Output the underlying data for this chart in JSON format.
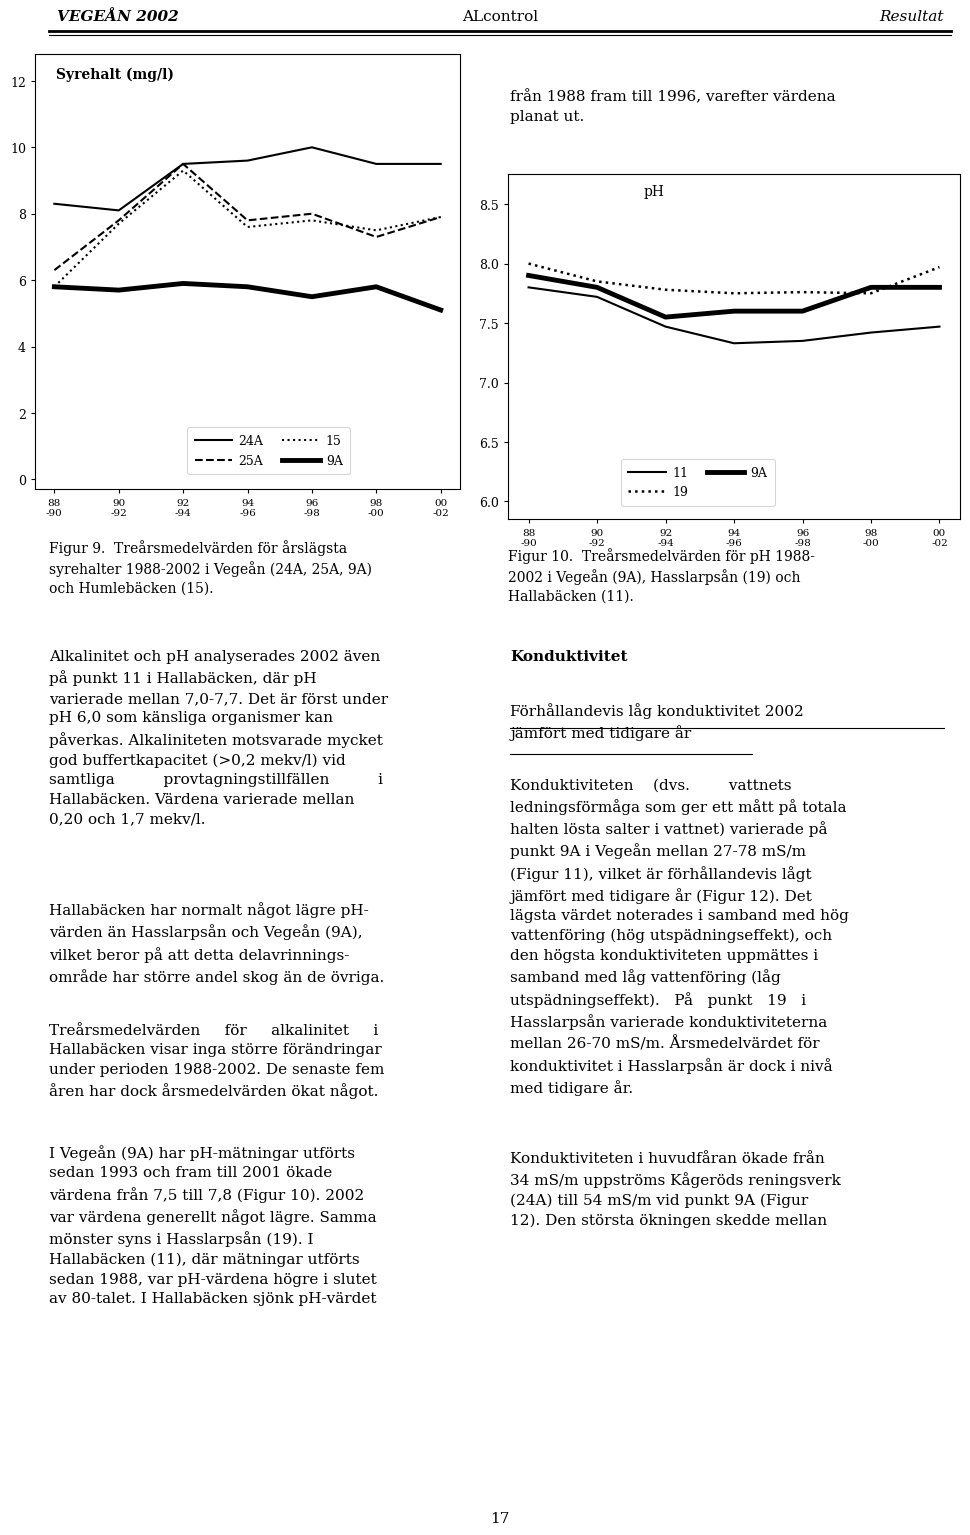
{
  "page_width": 9.6,
  "page_height": 15.74,
  "header_left": "VEGEÅN 2002",
  "header_center": "ALcontrol",
  "header_right": "Resultat",
  "chart1_title": "Syrehalt (mg/l)",
  "chart1_ylabel_vals": [
    0,
    2,
    4,
    6,
    8,
    10,
    12
  ],
  "chart1_ylim": [
    -0.3,
    12.8
  ],
  "chart1_xlabels": [
    "88\n-90",
    "90\n-92",
    "92\n-94",
    "94\n-96",
    "96\n-98",
    "98\n-00",
    "00\n-02"
  ],
  "chart1_series": {
    "24A": {
      "linestyle": "-",
      "linewidth": 1.5,
      "values": [
        8.3,
        8.1,
        9.5,
        9.6,
        10.0,
        9.5,
        9.5
      ]
    },
    "25A": {
      "linestyle": "--",
      "linewidth": 1.5,
      "values": [
        6.3,
        7.8,
        9.5,
        7.8,
        8.0,
        7.3,
        7.9
      ]
    },
    "15": {
      "linestyle": ":",
      "linewidth": 1.5,
      "values": [
        5.8,
        7.7,
        9.3,
        7.6,
        7.8,
        7.5,
        7.9
      ]
    },
    "9A": {
      "linestyle": "-",
      "linewidth": 3.5,
      "values": [
        5.8,
        5.7,
        5.9,
        5.8,
        5.5,
        5.8,
        5.1
      ]
    }
  },
  "right_text_top": "från 1988 fram till 1996, varefter värdena\nplanat ut.",
  "chart2_title": "pH",
  "chart2_ylabel_vals": [
    6.0,
    6.5,
    7.0,
    7.5,
    8.0,
    8.5
  ],
  "chart2_ylim": [
    5.85,
    8.75
  ],
  "chart2_xlabels": [
    "88\n-90",
    "90\n-92",
    "92\n-94",
    "94\n-96",
    "96\n-98",
    "98\n-00",
    "00\n-02"
  ],
  "chart2_series": {
    "9A": {
      "linestyle": "-",
      "linewidth": 3.5,
      "values": [
        7.9,
        7.8,
        7.55,
        7.6,
        7.6,
        7.8,
        7.8
      ]
    },
    "19": {
      "linestyle": ":",
      "linewidth": 1.8,
      "values": [
        8.0,
        7.85,
        7.78,
        7.75,
        7.76,
        7.75,
        7.97
      ]
    },
    "11": {
      "linestyle": "-",
      "linewidth": 1.5,
      "values": [
        7.8,
        7.72,
        7.47,
        7.33,
        7.35,
        7.42,
        7.47
      ]
    }
  },
  "fig9_caption": "Figur 9.  Treårsmedelvärden för årslägsta\nsyrehalter 1988-2002 i Vegeån (24A, 25A, 9A)\noch Humlebäcken (15).",
  "fig10_caption": "Figur 10.  Treårsmedelvärden för pH 1988-\n2002 i Vegeån (9A), Hasslarpsån (19) och\nHallabäcken (11).",
  "body_left_p1": "Alkalinitet och pH analyserades 2002 även\npå punkt 11 i Hallabäcken, där pH\nvarierade mellan 7,0-7,7. Det är först under\npH 6,0 som känsliga organismer kan\npåverkas. Alkaliniteten motsvarade ",
  "body_left_p1_italic": "mycket\ngod buffertkapacitet",
  "body_left_p1b": " (>0,2 mekv/l) vid\nsamtliga          provtagningstillfällen          i\nHallabäcken. Värdena varierade mellan\n0,20 och 1,7 mekv/l.",
  "body_left_p2": "Hallabäcken har normalt något lägre pH-\nvärden än Hasslarpsån och Vegeån (9A),\nvilket beror på att detta delavrinnings-\nområde har större andel skog än de övriga.",
  "body_left_p3": "Treårsmedelvärden     för     alkalinitet     i\nHallabäcken visar inga större förändringar\nunder perioden 1988-2002. De senaste fem\nåren har dock årsmedelvärden ökat något.",
  "body_left_p4": "I Vegeån (9A) har pH-mätningar utförts\nsedan 1993 och fram till 2001 ökade\nvärdena från 7,5 till 7,8 (Figur 10). 2002\nvar värdena generellt något lägre. Samma\nmönster syns i Hasslarpsån (19). I\nHallabäcken (11), där mätningar utförts\nsedan 1988, var pH-värdena högre i slutet\nav 80-talet. I Hallabäcken sjönk pH-värdet",
  "body_right_heading": "Konduktivitet",
  "body_right_subheading": "Förhållandevis låg konduktivitet 2002\njämfört med tidigare år",
  "body_right_p1": "Konduktiviteten    (dvs.        vattnets\nledningsförmåga som ger ett mått på totala\nhalten lösta salter i vattnet) varierade på\npunkt 9A i Vegeån mellan 27-78 mS/m\n(Figur 11), vilket är förhållandevis lågt\njämfört med tidigare år (Figur 12). Det\nlägsta värdet noterades i samband med hög\nvattenföring (hög utspädningseffekt), och\nden högsta konduktiviteten uppmättes i\nsamband med låg vattenföring (låg\nutspädningseffekt).   På   punkt   19   i\nHasslarpsån varierade konduktiviteterna\nmellan 26-70 mS/m. Årsmedelvärdet för\nkonduktivitet i Hasslarpsån är dock i nivå\nmed tidigare år.",
  "body_right_p2": "Konduktiviteten i huvudfåran ökade från\n34 mS/m uppströms Kågeröds reningsverk\n(24A) till 54 mS/m vid punkt 9A (Figur\n12). Den största ökningen skedde mellan",
  "page_number": "17"
}
